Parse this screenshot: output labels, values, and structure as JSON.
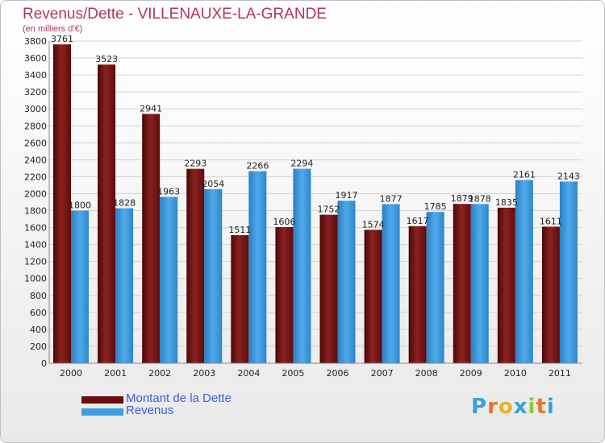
{
  "title": "Revenus/Dette - VILLENAUXE-LA-GRANDE",
  "subtitle": "(en milliers d'€)",
  "logo": {
    "letters": [
      "P",
      "r",
      "o",
      "x",
      "i",
      "t",
      "i"
    ],
    "colors": [
      "#3aa0d8",
      "#e8742a",
      "#e8b02a",
      "#3aa0d8",
      "#8ec63f",
      "#e8742a",
      "#3aa0d8"
    ]
  },
  "colors": {
    "dette": "#7a1818",
    "revenus": "#3d9ee0"
  },
  "chart_data": {
    "type": "bar",
    "categories": [
      "2000",
      "2001",
      "2002",
      "2003",
      "2004",
      "2005",
      "2006",
      "2007",
      "2008",
      "2009",
      "2010",
      "2011"
    ],
    "series": [
      {
        "name": "Montant de la Dette",
        "values": [
          3761,
          3523,
          2941,
          2293,
          1511,
          1606,
          1752,
          1574,
          1617,
          1879,
          1835,
          1611
        ]
      },
      {
        "name": "Revenus",
        "values": [
          1800,
          1828,
          1963,
          2054,
          2266,
          2294,
          1917,
          1877,
          1785,
          1878,
          2161,
          2143
        ]
      }
    ],
    "ylim": [
      0,
      3800
    ],
    "ytick_step": 200,
    "grid": true,
    "legend": "bottom-left"
  }
}
